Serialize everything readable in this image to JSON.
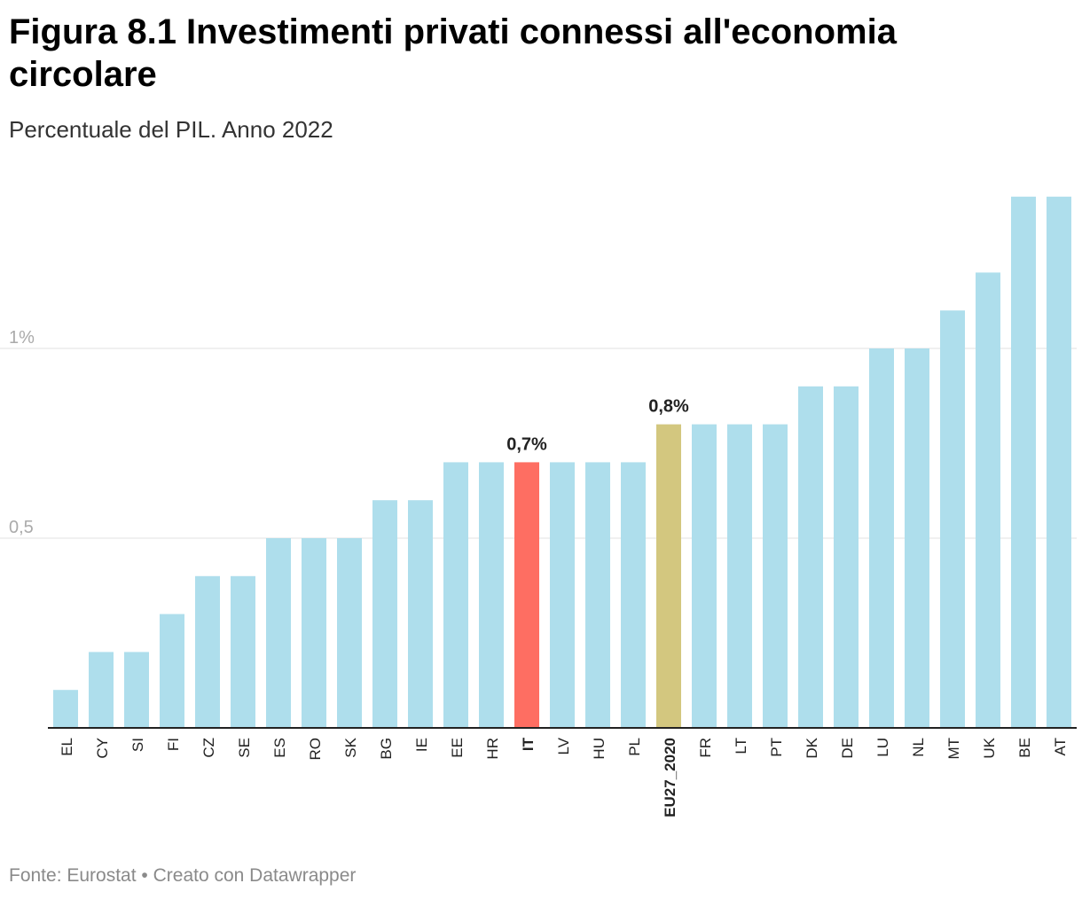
{
  "title": "Figura 8.1 Investimenti privati connessi all'economia circolare",
  "subtitle": "Percentuale del PIL. Anno 2022",
  "footer": {
    "source": "Fonte: Eurostat",
    "separator": "•",
    "credit": "Creato con Datawrapper"
  },
  "colors": {
    "default_bar": "#aedeec",
    "highlight_bar": "#fe6e62",
    "eu_bar": "#d3c77f",
    "grid": "#e0e0e0",
    "axis": "#222222",
    "tick_text": "#aaaaaa"
  },
  "chart_data": {
    "type": "bar",
    "title": "Figura 8.1 Investimenti privati connessi all'economia circolare",
    "subtitle": "Percentuale del PIL. Anno 2022",
    "xlabel": "",
    "ylabel": "",
    "ylim": [
      0,
      1.4
    ],
    "grid": true,
    "y_ticks": [
      {
        "value": 0.5,
        "label": "0,5"
      },
      {
        "value": 1.0,
        "label": "1%"
      }
    ],
    "categories": [
      "EL",
      "CY",
      "SI",
      "FI",
      "CZ",
      "SE",
      "ES",
      "RO",
      "SK",
      "BG",
      "IE",
      "EE",
      "HR",
      "IT",
      "LV",
      "HU",
      "PL",
      "EU27_2020",
      "FR",
      "LT",
      "PT",
      "DK",
      "DE",
      "LU",
      "NL",
      "MT",
      "UK",
      "BE",
      "AT"
    ],
    "values": [
      0.1,
      0.2,
      0.2,
      0.3,
      0.4,
      0.4,
      0.5,
      0.5,
      0.5,
      0.6,
      0.6,
      0.7,
      0.7,
      0.7,
      0.7,
      0.7,
      0.7,
      0.8,
      0.8,
      0.8,
      0.8,
      0.9,
      0.9,
      1.0,
      1.0,
      1.1,
      1.2,
      1.4,
      1.4
    ],
    "highlights": [
      {
        "category": "IT",
        "color_key": "highlight_bar",
        "bold_label": true,
        "value_label": "0,7%"
      },
      {
        "category": "EU27_2020",
        "color_key": "eu_bar",
        "bold_label": true,
        "value_label": "0,8%"
      }
    ]
  }
}
